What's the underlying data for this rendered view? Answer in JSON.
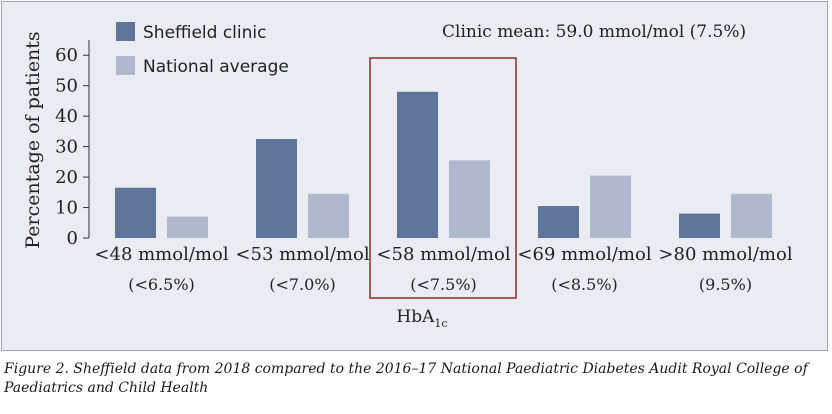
{
  "chart_data": {
    "type": "bar",
    "ylabel": "Percentage of patients",
    "xlabel": "HbA",
    "xlabel_subscript": "1c",
    "ylim": [
      0,
      65
    ],
    "yticks": [
      0,
      10,
      20,
      30,
      40,
      50,
      60
    ],
    "categories": [
      "<48 mmol/mol",
      "<53 mmol/mol",
      "<58 mmol/mol",
      "<69 mmol/mol",
      ">80 mmol/mol"
    ],
    "category_sublabels": [
      "(<6.5%)",
      "(<7.0%)",
      "(<7.5%)",
      "(<8.5%)",
      "(9.5%)"
    ],
    "series": [
      {
        "name": "Sheffield clinic",
        "values": [
          16.5,
          32.5,
          48,
          10.5,
          8
        ],
        "color": "#5f7499"
      },
      {
        "name": "National average",
        "values": [
          7,
          14.5,
          25.5,
          20.5,
          14.5
        ],
        "color": "#b0b8cd"
      }
    ],
    "highlight_category": 2,
    "highlight_color": "#8c2b2b",
    "annotation": "Clinic mean: 59.0 mmol/mol (7.5%)",
    "legend_position": "top-left",
    "grid": false
  },
  "caption": "Figure 2. Sheffield data from 2018 compared to the 2016–17 National Paediatric Diabetes Audit Royal College of Paediatrics and Child Health"
}
